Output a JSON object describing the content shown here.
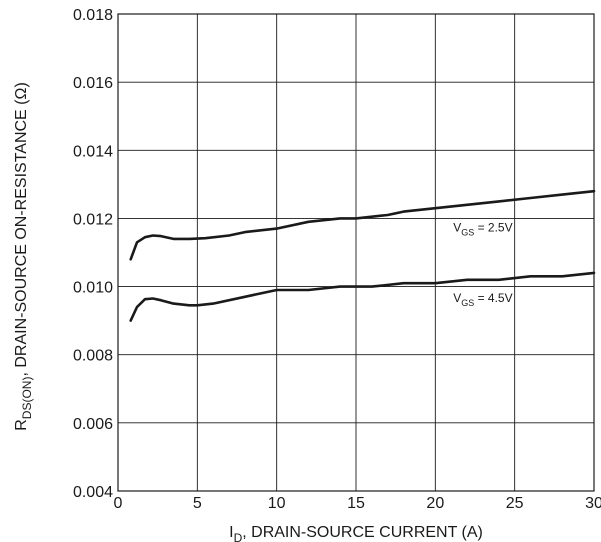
{
  "chart_data": {
    "type": "line",
    "xlabel": {
      "main": "I",
      "sub": "D",
      "rest": ", DRAIN-SOURCE CURRENT (A)"
    },
    "ylabel": {
      "main": "R",
      "sub": "DS(ON)",
      "rest": ", DRAIN-SOURCE ON-RESISTANCE (Ω)"
    },
    "xlim": [
      0,
      30
    ],
    "ylim": [
      0.004,
      0.018
    ],
    "xticks": [
      0,
      5,
      10,
      15,
      20,
      25,
      30
    ],
    "yticks": [
      0.004,
      0.006,
      0.008,
      0.01,
      0.012,
      0.014,
      0.016,
      0.018
    ],
    "ytick_labels": [
      "0.004",
      "0.006",
      "0.008",
      "0.010",
      "0.012",
      "0.014",
      "0.016",
      "0.018"
    ],
    "grid": true,
    "series": [
      {
        "name": "VGS = 2.5V",
        "label": {
          "main": "V",
          "sub": "GS",
          "rest": " = 2.5V"
        },
        "x": [
          0.8,
          1.2,
          1.7,
          2.2,
          2.7,
          3.5,
          4.5,
          5.5,
          7,
          8,
          10,
          12,
          14,
          15,
          17,
          18,
          20,
          22,
          24,
          26,
          28,
          30
        ],
        "y": [
          0.0108,
          0.0113,
          0.01145,
          0.0115,
          0.01148,
          0.0114,
          0.0114,
          0.01142,
          0.0115,
          0.0116,
          0.0117,
          0.0119,
          0.012,
          0.012,
          0.0121,
          0.0122,
          0.0123,
          0.0124,
          0.0125,
          0.0126,
          0.0127,
          0.0128
        ]
      },
      {
        "name": "VGS = 4.5V",
        "label": {
          "main": "V",
          "sub": "GS",
          "rest": " = 4.5V"
        },
        "x": [
          0.8,
          1.2,
          1.7,
          2.2,
          2.7,
          3.5,
          4.5,
          5,
          6,
          8,
          10,
          12,
          14,
          16,
          18,
          20,
          22,
          24,
          26,
          28,
          30
        ],
        "y": [
          0.009,
          0.0094,
          0.00963,
          0.00965,
          0.0096,
          0.0095,
          0.00945,
          0.00945,
          0.0095,
          0.0097,
          0.0099,
          0.0099,
          0.01,
          0.01,
          0.0101,
          0.0101,
          0.0102,
          0.0102,
          0.0103,
          0.0103,
          0.0104
        ]
      }
    ],
    "annotations": [
      {
        "series": 0,
        "x": 23.0,
        "y": 0.01161
      },
      {
        "series": 1,
        "x": 23.0,
        "y": 0.00955
      }
    ]
  }
}
